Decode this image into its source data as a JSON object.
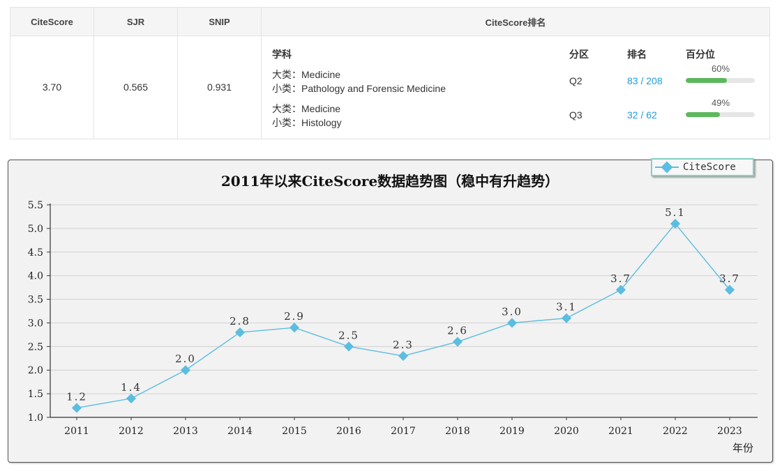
{
  "metrics": {
    "headers": [
      "CiteScore",
      "SJR",
      "SNIP",
      "CiteScore排名"
    ],
    "citescore": "3.70",
    "sjr": "0.565",
    "snip": "0.931",
    "ranking_headers": {
      "subject": "学科",
      "quartile": "分区",
      "rank": "排名",
      "percentile": "百分位"
    },
    "rows": [
      {
        "major": "大类：Medicine",
        "minor": "小类：Pathology and Forensic Medicine",
        "quartile": "Q2",
        "rank": "83 / 208",
        "percentile_label": "60%",
        "percentile": 60
      },
      {
        "major": "大类：Medicine",
        "minor": "小类：Histology",
        "quartile": "Q3",
        "rank": "32 / 62",
        "percentile_label": "49%",
        "percentile": 49
      }
    ],
    "colors": {
      "rank_link": "#1e9bd7",
      "bar_fill": "#5cb85c",
      "bar_track": "#e6e6e6"
    }
  },
  "chart_data": {
    "type": "line",
    "title": "2011年以来CiteScore数据趋势图（稳中有升趋势）",
    "xlabel": "年份",
    "ylabel": "",
    "x": [
      "2011",
      "2012",
      "2013",
      "2014",
      "2015",
      "2016",
      "2017",
      "2018",
      "2019",
      "2020",
      "2021",
      "2022",
      "2023"
    ],
    "series": [
      {
        "name": "CiteScore",
        "values": [
          1.2,
          1.4,
          2.0,
          2.8,
          2.9,
          2.5,
          2.3,
          2.6,
          3.0,
          3.1,
          3.7,
          5.1,
          3.7
        ],
        "labels": [
          "1.2",
          "1.4",
          "2.0",
          "2.8",
          "2.9",
          "2.5",
          "2.3",
          "2.6",
          "3.0",
          "3.1",
          "3.7",
          "5.1",
          "3.7"
        ]
      }
    ],
    "ylim": [
      1.0,
      5.5
    ],
    "yticks": [
      "1.0",
      "1.5",
      "2.0",
      "2.5",
      "3.0",
      "3.5",
      "4.0",
      "4.5",
      "5.0",
      "5.5"
    ],
    "grid": true,
    "legend_position": "top-right",
    "color": "#5bbde0"
  }
}
